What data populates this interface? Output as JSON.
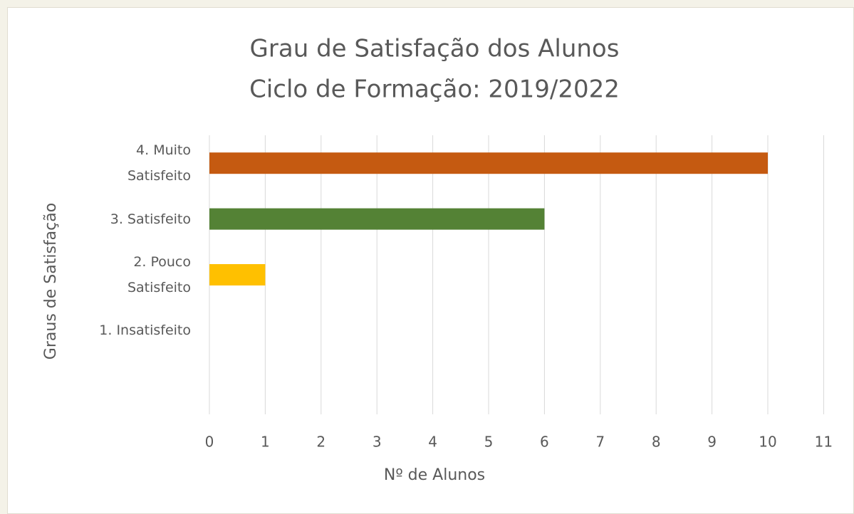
{
  "chart_data": {
    "type": "bar",
    "orientation": "horizontal",
    "title": "Grau de Satisfação dos Alunos",
    "subtitle": "Ciclo de Formação: 2019/2022",
    "x_label": "Nº de Alunos",
    "y_label": "Graus de Satisfação",
    "categories": [
      "4. Muito\nSatisfeito",
      "3. Satisfeito",
      "2. Pouco\nSatisfeito",
      "1. Insatisfeito",
      null
    ],
    "values": [
      10,
      6,
      1,
      0,
      null
    ],
    "colors": [
      "#c55a11",
      "#548235",
      "#ffc000",
      null,
      null
    ],
    "xlim": [
      0,
      11
    ],
    "xticks": [
      0,
      1,
      2,
      3,
      4,
      5,
      6,
      7,
      8,
      9,
      10,
      11
    ],
    "grid": true
  }
}
